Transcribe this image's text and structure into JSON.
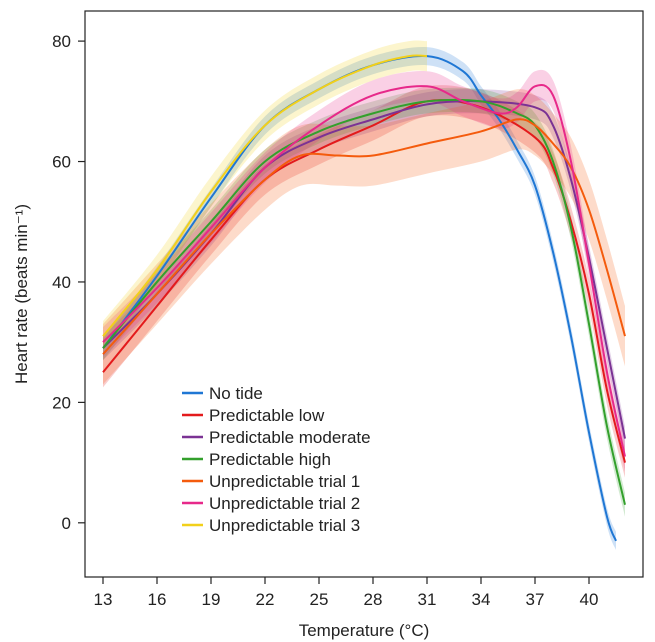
{
  "chart_data": {
    "type": "line",
    "xlabel": "Temperature (°C)",
    "ylabel": "Heart rate (beats min⁻¹)",
    "xlim": [
      12,
      43
    ],
    "ylim": [
      -9,
      85
    ],
    "x_ticks": [
      13,
      16,
      19,
      22,
      25,
      28,
      31,
      34,
      37,
      40
    ],
    "y_ticks": [
      0,
      20,
      40,
      60,
      80
    ],
    "grid": false,
    "legend_position": "bottom-left",
    "series": [
      {
        "name": "No tide",
        "color": "#1f77d4",
        "x": [
          13,
          16,
          19,
          22,
          25,
          28,
          31,
          33,
          34,
          35,
          36,
          37,
          38,
          39,
          40,
          41,
          41.5
        ],
        "y": [
          29,
          41,
          54,
          66,
          72,
          76,
          77.5,
          75,
          71,
          67,
          62,
          56,
          45,
          31,
          15,
          1,
          -3
        ],
        "band": 1.5
      },
      {
        "name": "Predictable low",
        "color": "#e31a1c",
        "x": [
          13,
          16,
          19,
          22,
          25,
          28,
          31,
          34,
          37,
          38,
          39,
          40,
          41,
          42
        ],
        "y": [
          25,
          36,
          47,
          57,
          62,
          66,
          70,
          69,
          64,
          59,
          50,
          38,
          22,
          10
        ],
        "band": 2.5
      },
      {
        "name": "Predictable moderate",
        "color": "#7b3294",
        "x": [
          13,
          16,
          19,
          22,
          25,
          28,
          31,
          34,
          37,
          38,
          39,
          40,
          41,
          42
        ],
        "y": [
          29,
          38,
          48,
          59,
          64,
          67,
          69.5,
          70,
          69,
          66,
          57,
          44,
          29,
          14
        ],
        "band": 2
      },
      {
        "name": "Predictable high",
        "color": "#33a02c",
        "x": [
          13,
          16,
          19,
          22,
          25,
          28,
          31,
          34,
          36,
          37,
          38,
          39,
          40,
          41,
          42
        ],
        "y": [
          29,
          40,
          50,
          60,
          65,
          68,
          70,
          70,
          68,
          66,
          60,
          49,
          33,
          16,
          3
        ],
        "band": 2
      },
      {
        "name": "Unpredictable trial 1",
        "color": "#f45b0d",
        "x": [
          13,
          16,
          19,
          22,
          24,
          26,
          28,
          31,
          34,
          36,
          37,
          38,
          39,
          40,
          41,
          42
        ],
        "y": [
          28,
          38,
          48,
          57,
          61,
          61,
          61,
          63,
          65,
          67,
          66,
          63,
          59,
          52,
          42,
          31
        ],
        "band": 5
      },
      {
        "name": "Unpredictable trial 2",
        "color": "#e7298a",
        "x": [
          13,
          16,
          19,
          22,
          25,
          28,
          31,
          33,
          35,
          36,
          37,
          38,
          39,
          40,
          41,
          42
        ],
        "y": [
          30,
          39,
          49,
          59,
          66,
          71,
          72.5,
          70,
          68,
          69,
          72.5,
          71,
          60,
          43,
          25,
          11
        ],
        "band": 2.5
      },
      {
        "name": "Unpredictable trial 3",
        "color": "#f2d01a",
        "x": [
          13,
          16,
          19,
          22,
          25,
          28,
          30,
          31
        ],
        "y": [
          31,
          42,
          55,
          66,
          72,
          76,
          77.5,
          77.5
        ],
        "band": 2.5
      }
    ]
  }
}
